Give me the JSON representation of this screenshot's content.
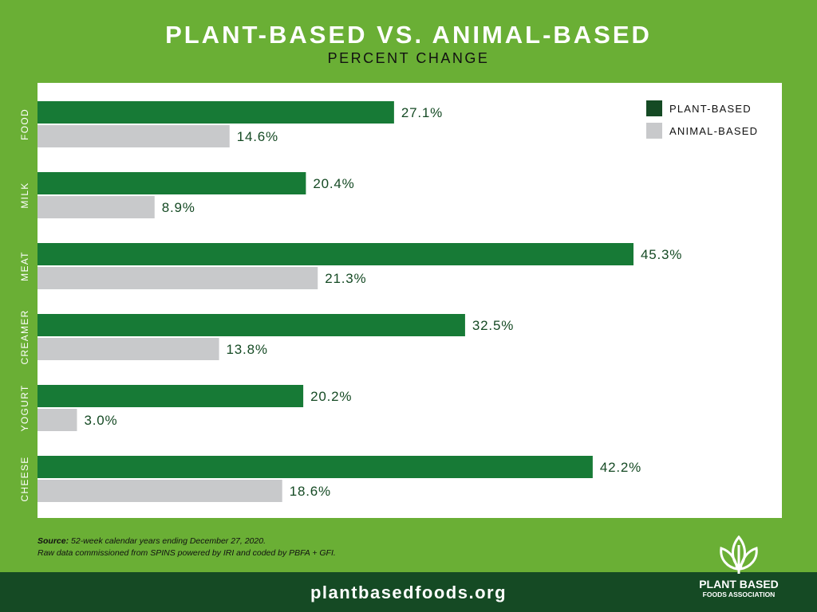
{
  "header": {
    "title": "PLANT-BASED VS. ANIMAL-BASED",
    "subtitle": "PERCENT CHANGE"
  },
  "colors": {
    "plant": "#177a36",
    "plant_legend": "#154a24",
    "animal": "#c8c9cb",
    "label": "#154a24"
  },
  "chart_data": {
    "type": "bar",
    "orientation": "horizontal",
    "title": "PLANT-BASED VS. ANIMAL-BASED",
    "subtitle": "PERCENT CHANGE",
    "categories": [
      "FOOD",
      "MILK",
      "MEAT",
      "CREAMER",
      "YOGURT",
      "CHEESE"
    ],
    "series": [
      {
        "name": "PLANT-BASED",
        "values": [
          27.1,
          20.4,
          45.3,
          32.5,
          20.2,
          42.2
        ],
        "labels": [
          "27.1%",
          "20.4%",
          "45.3%",
          "32.5%",
          "20.2%",
          "42.2%"
        ]
      },
      {
        "name": "ANIMAL-BASED",
        "values": [
          14.6,
          8.9,
          21.3,
          13.8,
          3.0,
          18.6
        ],
        "labels": [
          "14.6%",
          "8.9%",
          "21.3%",
          "13.8%",
          "3.0%",
          "18.6%"
        ]
      }
    ],
    "xlim": [
      0,
      55
    ],
    "grid": false,
    "legend": "top-right"
  },
  "source": {
    "label": "Source:",
    "line1": " 52-week calendar years ending December 27, 2020.",
    "line2": "Raw data commissioned from SPINS powered by IRI and coded by PBFA + GFI."
  },
  "footer": {
    "url": "plantbasedfoods.org",
    "logo_line1": "PLANT BASED",
    "logo_line2": "FOODS ASSOCIATION"
  }
}
